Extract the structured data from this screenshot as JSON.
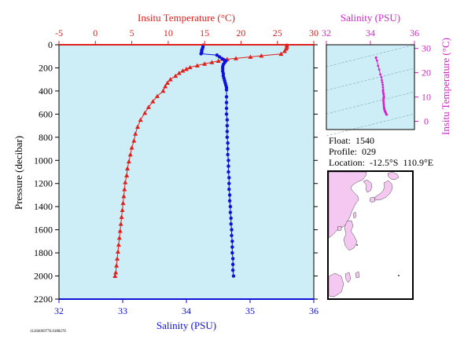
{
  "colors": {
    "plot_bg": "#cdeef7",
    "temperature": "#e0201b",
    "salinity": "#1010d8",
    "inset_salinity": "#d028c8",
    "land": "#f5c8f2",
    "sea": "#ffffff",
    "axis": "#000000"
  },
  "chart_data": [
    {
      "type": "scatter",
      "title": "",
      "top_axis_title": "Insitu Temperature (°C)",
      "top_ticks": [
        "-5",
        "0",
        "5",
        "10",
        "15",
        "20",
        "25",
        "30"
      ],
      "top_range": [
        -5,
        30
      ],
      "bottom_axis_title": "Salinity (PSU)",
      "bottom_ticks": [
        "32",
        "33",
        "34",
        "35",
        "36"
      ],
      "bottom_range": [
        32,
        36
      ],
      "y_axis_title": "Pressure (decibar)",
      "y_ticks": [
        "0",
        "200",
        "400",
        "600",
        "800",
        "1000",
        "1200",
        "1400",
        "1600",
        "1800",
        "2000",
        "2200"
      ],
      "y_range": [
        0,
        2200
      ],
      "y_inverted": true,
      "series": [
        {
          "key": "temperature",
          "marker": "triangle",
          "points": [
            [
              26.3,
              5
            ],
            [
              26.3,
              20
            ],
            [
              26.2,
              35
            ],
            [
              26.0,
              55
            ],
            [
              25.5,
              80
            ],
            [
              22.8,
              95
            ],
            [
              21.3,
              105
            ],
            [
              19.3,
              118
            ],
            [
              18.1,
              125
            ],
            [
              16.9,
              140
            ],
            [
              16.0,
              152
            ],
            [
              15.0,
              165
            ],
            [
              14.0,
              180
            ],
            [
              13.0,
              195
            ],
            [
              12.5,
              210
            ],
            [
              12.0,
              225
            ],
            [
              11.5,
              245
            ],
            [
              11.0,
              270
            ],
            [
              10.3,
              300
            ],
            [
              9.9,
              330
            ],
            [
              9.6,
              360
            ],
            [
              9.3,
              400
            ],
            [
              8.5,
              445
            ],
            [
              7.9,
              490
            ],
            [
              7.3,
              540
            ],
            [
              6.8,
              590
            ],
            [
              6.2,
              650
            ],
            [
              5.8,
              710
            ],
            [
              5.5,
              770
            ],
            [
              5.3,
              830
            ],
            [
              5.0,
              890
            ],
            [
              4.8,
              950
            ],
            [
              4.6,
              1010
            ],
            [
              4.4,
              1070
            ],
            [
              4.3,
              1130
            ],
            [
              4.1,
              1190
            ],
            [
              4.0,
              1250
            ],
            [
              3.9,
              1310
            ],
            [
              3.8,
              1370
            ],
            [
              3.7,
              1430
            ],
            [
              3.6,
              1490
            ],
            [
              3.5,
              1550
            ],
            [
              3.4,
              1610
            ],
            [
              3.3,
              1670
            ],
            [
              3.2,
              1730
            ],
            [
              3.1,
              1790
            ],
            [
              3.0,
              1850
            ],
            [
              2.9,
              1910
            ],
            [
              2.8,
              1970
            ],
            [
              2.7,
              2000
            ]
          ]
        },
        {
          "key": "salinity",
          "marker": "circle",
          "points": [
            [
              34.26,
              5
            ],
            [
              34.26,
              20
            ],
            [
              34.25,
              35
            ],
            [
              34.24,
              50
            ],
            [
              34.24,
              65
            ],
            [
              34.23,
              78
            ],
            [
              34.48,
              90
            ],
            [
              34.52,
              105
            ],
            [
              34.56,
              120
            ],
            [
              34.59,
              130
            ],
            [
              34.62,
              140
            ],
            [
              34.6,
              155
            ],
            [
              34.58,
              170
            ],
            [
              34.57,
              190
            ],
            [
              34.57,
              210
            ],
            [
              34.57,
              230
            ],
            [
              34.58,
              250
            ],
            [
              34.58,
              270
            ],
            [
              34.59,
              290
            ],
            [
              34.6,
              310
            ],
            [
              34.61,
              330
            ],
            [
              34.62,
              350
            ],
            [
              34.63,
              370
            ],
            [
              34.63,
              390
            ],
            [
              34.63,
              450
            ],
            [
              34.63,
              500
            ],
            [
              34.63,
              550
            ],
            [
              34.63,
              600
            ],
            [
              34.64,
              650
            ],
            [
              34.64,
              700
            ],
            [
              34.64,
              750
            ],
            [
              34.64,
              800
            ],
            [
              34.65,
              850
            ],
            [
              34.65,
              900
            ],
            [
              34.65,
              950
            ],
            [
              34.66,
              1000
            ],
            [
              34.66,
              1050
            ],
            [
              34.66,
              1100
            ],
            [
              34.67,
              1150
            ],
            [
              34.67,
              1200
            ],
            [
              34.67,
              1250
            ],
            [
              34.68,
              1300
            ],
            [
              34.68,
              1350
            ],
            [
              34.69,
              1400
            ],
            [
              34.69,
              1450
            ],
            [
              34.7,
              1500
            ],
            [
              34.7,
              1550
            ],
            [
              34.71,
              1600
            ],
            [
              34.71,
              1650
            ],
            [
              34.72,
              1700
            ],
            [
              34.72,
              1750
            ],
            [
              34.72,
              1800
            ],
            [
              34.73,
              1850
            ],
            [
              34.73,
              1900
            ],
            [
              34.73,
              1950
            ],
            [
              34.74,
              2000
            ]
          ]
        }
      ]
    },
    {
      "type": "scatter",
      "title": "",
      "top_axis_title": "Salinity (PSU)",
      "top_ticks": [
        "32",
        "34",
        "36"
      ],
      "x_range": [
        32,
        36
      ],
      "right_axis_title": "Insitu Temperature (°C)",
      "right_ticks": [
        "0",
        "10",
        "20",
        "30"
      ],
      "y_range": [
        -3.4,
        31.5
      ],
      "series": [
        {
          "key": "salinity_vs_temperature",
          "points": [
            [
              34.26,
              26.3
            ],
            [
              34.25,
              26.0
            ],
            [
              34.3,
              25.0
            ],
            [
              34.35,
              22.8
            ],
            [
              34.4,
              21.3
            ],
            [
              34.45,
              19.3
            ],
            [
              34.5,
              18.1
            ],
            [
              34.52,
              16.9
            ],
            [
              34.54,
              16.0
            ],
            [
              34.56,
              15.0
            ],
            [
              34.57,
              14.0
            ],
            [
              34.58,
              13.0
            ],
            [
              34.57,
              12.5
            ],
            [
              34.58,
              12.0
            ],
            [
              34.59,
              11.5
            ],
            [
              34.6,
              11.0
            ],
            [
              34.61,
              10.3
            ],
            [
              34.62,
              9.9
            ],
            [
              34.6,
              9.6
            ],
            [
              34.59,
              9.3
            ],
            [
              34.59,
              8.5
            ],
            [
              34.6,
              7.9
            ],
            [
              34.6,
              7.3
            ],
            [
              34.61,
              6.8
            ],
            [
              34.61,
              6.2
            ],
            [
              34.62,
              5.8
            ],
            [
              34.62,
              5.5
            ],
            [
              34.63,
              5.3
            ],
            [
              34.63,
              5.0
            ],
            [
              34.64,
              4.8
            ],
            [
              34.64,
              4.6
            ],
            [
              34.65,
              4.4
            ],
            [
              34.66,
              4.3
            ],
            [
              34.66,
              4.1
            ],
            [
              34.67,
              4.0
            ],
            [
              34.68,
              3.8
            ],
            [
              34.69,
              3.6
            ],
            [
              34.7,
              3.4
            ],
            [
              34.71,
              3.2
            ],
            [
              34.72,
              3.0
            ],
            [
              34.73,
              2.8
            ],
            [
              34.74,
              2.7
            ]
          ]
        }
      ]
    }
  ],
  "info": {
    "float_line": "Float:  1540",
    "profile_line": "Profile:  029",
    "location_line": "Location:  -12.5°S  110.9°E"
  },
  "footer": {
    "stamp": "11266069776.0388276"
  }
}
